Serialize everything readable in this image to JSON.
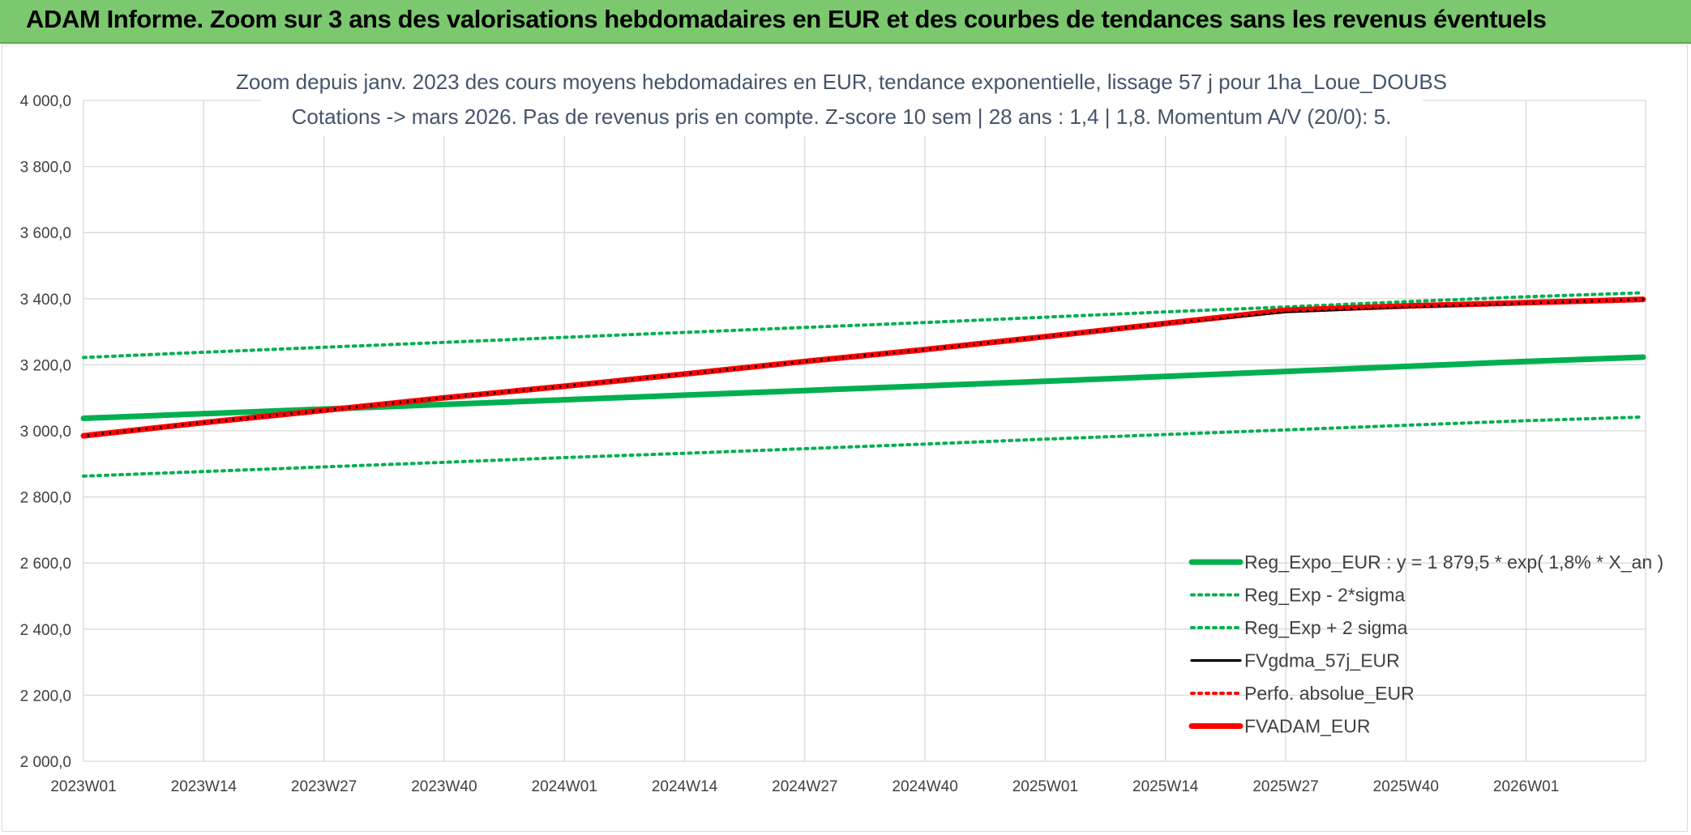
{
  "banner": {
    "title": "ADAM Informe. Zoom sur 3 ans des valorisations hebdomadaires en EUR et des courbes de tendances sans les revenus éventuels"
  },
  "colors": {
    "banner": "#7bc86f",
    "reg_expo": "#00b050",
    "bands": "#00b050",
    "fvgdma": "#000000",
    "perfo": "#ff0000",
    "fvadam": "#ff0000",
    "grid": "#d9d9d9"
  },
  "chart_data": {
    "type": "line",
    "title": [
      "Zoom depuis janv. 2023 des cours moyens hebdomadaires en EUR, tendance exponentielle, lissage 57 j pour 1ha_Loue_DOUBS",
      "Cotations -> mars 2026. Pas de revenus pris en compte. Z-score 10 sem | 28 ans : 1,4 | 1,8. Momentum A/V (20/0): 5."
    ],
    "xlabel": "",
    "ylabel": "",
    "ylim": [
      2000,
      4000
    ],
    "yticks": [
      "2 000,0",
      "2 200,0",
      "2 400,0",
      "2 600,0",
      "2 800,0",
      "3 000,0",
      "3 200,0",
      "3 400,0",
      "3 600,0",
      "3 800,0",
      "4 000,0"
    ],
    "ytick_values": [
      2000,
      2200,
      2400,
      2600,
      2800,
      3000,
      3200,
      3400,
      3600,
      3800,
      4000
    ],
    "x_categories": [
      "2023W01",
      "2023W14",
      "2023W27",
      "2023W40",
      "2024W01",
      "2024W14",
      "2024W27",
      "2024W40",
      "2025W01",
      "2025W14",
      "2025W27",
      "2025W40",
      "2026W01"
    ],
    "x_last": "2026W13",
    "x": [
      "2023W01",
      "2023W14",
      "2023W27",
      "2023W40",
      "2024W01",
      "2024W14",
      "2024W27",
      "2024W40",
      "2025W01",
      "2025W14",
      "2025W27",
      "2025W40",
      "2026W01",
      "2026W13"
    ],
    "grid": true,
    "legend_position": "bottom-right",
    "series": [
      {
        "name": "Reg_Expo_EUR : y = 1 879,5 * exp( 1,8% *  X_an )",
        "style": "solid-thick",
        "color": "#00b050",
        "values": [
          3038,
          3052,
          3066,
          3080,
          3094,
          3108,
          3122,
          3136,
          3150,
          3165,
          3180,
          3195,
          3210,
          3223
        ]
      },
      {
        "name": "Reg_Exp - 2*sigma",
        "style": "dotted",
        "color": "#00b050",
        "values": [
          2863,
          2877,
          2891,
          2905,
          2919,
          2932,
          2946,
          2960,
          2975,
          2989,
          3003,
          3017,
          3031,
          3042
        ]
      },
      {
        "name": "Reg_Exp + 2 sigma",
        "style": "dotted",
        "color": "#00b050",
        "values": [
          3222,
          3238,
          3253,
          3268,
          3283,
          3298,
          3313,
          3328,
          3344,
          3360,
          3375,
          3391,
          3406,
          3418
        ]
      },
      {
        "name": "FVgdma_57j_EUR",
        "style": "solid-thin",
        "color": "#000000",
        "values": [
          2985,
          3025,
          3062,
          3100,
          3135,
          3172,
          3210,
          3246,
          3285,
          3325,
          3360,
          3375,
          3387,
          3398
        ]
      },
      {
        "name": "Perfo. absolue_EUR",
        "style": "dotted",
        "color": "#ff0000",
        "values": [
          2985,
          3025,
          3062,
          3100,
          3135,
          3172,
          3210,
          3246,
          3285,
          3325,
          3365,
          3378,
          3388,
          3398
        ]
      },
      {
        "name": "FVADAM_EUR",
        "style": "solid-thick",
        "color": "#ff0000",
        "values": [
          2985,
          3025,
          3062,
          3100,
          3135,
          3172,
          3210,
          3246,
          3285,
          3325,
          3365,
          3378,
          3388,
          3398
        ]
      }
    ]
  }
}
